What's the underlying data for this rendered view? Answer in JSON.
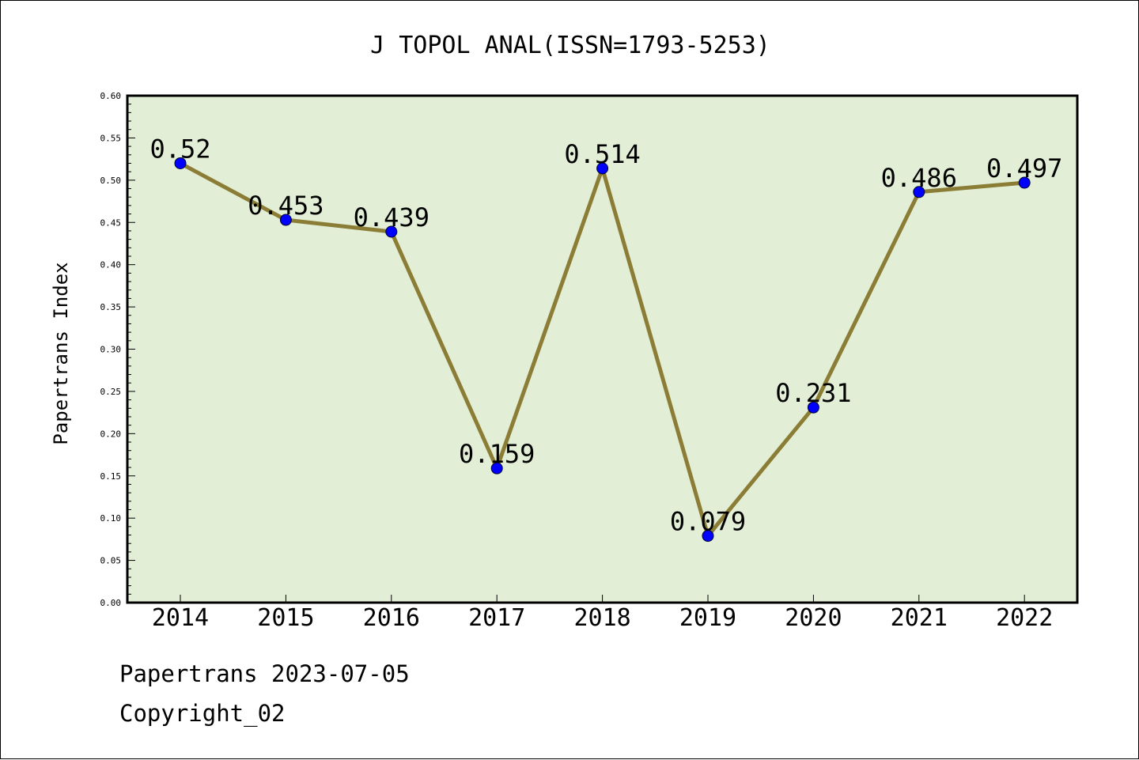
{
  "chart_data": {
    "type": "line",
    "title": "J TOPOL ANAL(ISSN=1793-5253)",
    "xlabel": "",
    "ylabel": "Papertrans Index",
    "categories": [
      "2014",
      "2015",
      "2016",
      "2017",
      "2018",
      "2019",
      "2020",
      "2021",
      "2022"
    ],
    "series": [
      {
        "values": [
          0.52,
          0.453,
          0.439,
          0.159,
          0.514,
          0.079,
          0.231,
          0.486,
          0.497
        ],
        "labels": [
          "0.52",
          "0.453",
          "0.439",
          "0.159",
          "0.514",
          "0.079",
          "0.231",
          "0.486",
          "0.497"
        ]
      }
    ],
    "ylim": [
      0,
      0.6
    ],
    "yticks": [
      "0.00",
      "0.05",
      "0.10",
      "0.15",
      "0.20",
      "0.25",
      "0.30",
      "0.35",
      "0.40",
      "0.45",
      "0.50",
      "0.55",
      "0.60"
    ],
    "grid": false,
    "legend": "none",
    "colors": {
      "plot_background": "#e2efd6",
      "line": "#8b7d35",
      "marker": "#0000ff"
    }
  },
  "footer": {
    "line1": "Papertrans 2023-07-05",
    "line2": "Copyright_02"
  }
}
